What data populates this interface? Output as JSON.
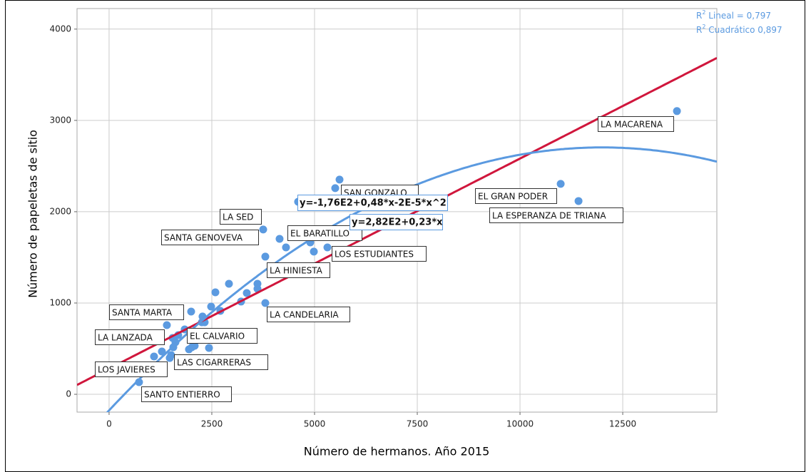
{
  "chart_data": {
    "type": "scatter",
    "x_label": "Número de hermanos. Año 2015",
    "y_label": "Número de papeletas de sitio",
    "xlim": [
      -780,
      14790
    ],
    "ylim": [
      -195,
      4225
    ],
    "xticks": [
      0,
      2500,
      5000,
      7500,
      10000,
      12500
    ],
    "yticks": [
      0,
      1000,
      2000,
      3000,
      4000
    ],
    "grid": true,
    "series": [
      {
        "color": "#5b9ae0",
        "x": [
          13819,
          10990,
          11424,
          5608,
          5503,
          4600,
          3750,
          4149,
          4305,
          4896,
          4983,
          5313,
          3802,
          2917,
          2587,
          3611,
          3611,
          3351,
          3212,
          3802,
          2708,
          2483,
          1997,
          2274,
          2257,
          2326,
          1406,
          1840,
          1684,
          1545,
          1615,
          1563,
          2014,
          2083,
          1944,
          2431,
          1285,
          1510,
          1476,
          1094,
          729
        ],
        "values": [
          3102,
          2305,
          2117,
          2352,
          2258,
          2109,
          1805,
          1703,
          1609,
          1664,
          1563,
          1609,
          1508,
          1211,
          1117,
          1211,
          1156,
          1109,
          1016,
          1000,
          914,
          961,
          906,
          852,
          789,
          789,
          758,
          711,
          648,
          617,
          570,
          516,
          516,
          531,
          492,
          508,
          469,
          430,
          398,
          414,
          133
        ]
      }
    ],
    "fits": [
      {
        "color": "#d0163c",
        "coefficients": [
          282,
          0.23
        ],
        "equation": "y=2,82E2+0,23*x",
        "legend": {
          "r": "R",
          "sup": "2",
          "text": " Lineal = 0,797"
        }
      },
      {
        "color": "#5b9ae0",
        "coefficients": [
          -176,
          0.48,
          -2e-05
        ],
        "equation": "y=-1,76E2+0,48*x-2E-5*x^2",
        "legend": {
          "r": "R",
          "sup": "2",
          "text": " Cuadrático 0,897"
        }
      }
    ],
    "annotations": [
      "LA MACARENA",
      "EL GRAN PODER",
      "LA ESPERANZA DE TRIANA",
      "SAN GONZALO",
      "LA SED",
      "SANTA GENOVEVA",
      "EL BARATILLO",
      "LOS ESTUDIANTES",
      "LA HINIESTA",
      "LA CANDELARIA",
      "SANTA MARTA",
      "EL CALVARIO",
      "LA LANZADA",
      "LAS CIGARRERAS",
      "LOS JAVIERES",
      "SANTO ENTIERRO"
    ]
  }
}
